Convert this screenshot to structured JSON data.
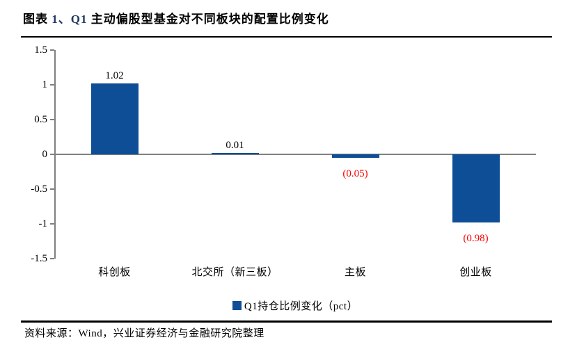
{
  "title": {
    "part1": "图表 ",
    "part2": "1、Q1",
    "part3": " 主动偏股型基金对不同板块的配置比例变化"
  },
  "legend": {
    "label": "Q1持仓比例变化（pct）"
  },
  "source": "资料来源：Wind，兴业证券经济与金融研究院整理",
  "colors": {
    "bar": "#0D4E96",
    "negative_label": "#FF0000",
    "axis": "#808080",
    "title_accent": "#1F3864",
    "text": "#000000"
  },
  "chart_data": {
    "type": "bar",
    "title": "Q1 主动偏股型基金对不同板块的配置比例变化",
    "categories": [
      "科创板",
      "北交所（新三板）",
      "主板",
      "创业板"
    ],
    "series": [
      {
        "name": "Q1持仓比例变化（pct）",
        "values": [
          1.02,
          0.01,
          -0.05,
          -0.98
        ]
      }
    ],
    "value_labels": [
      "1.02",
      "0.01",
      "(0.05)",
      "(0.98)"
    ],
    "xlabel": "",
    "ylabel": "",
    "ylim": [
      -1.5,
      1.5
    ],
    "yticks": [
      1.5,
      1,
      0.5,
      0,
      -0.5,
      -1,
      -1.5
    ],
    "grid": false,
    "legend_position": "bottom"
  }
}
